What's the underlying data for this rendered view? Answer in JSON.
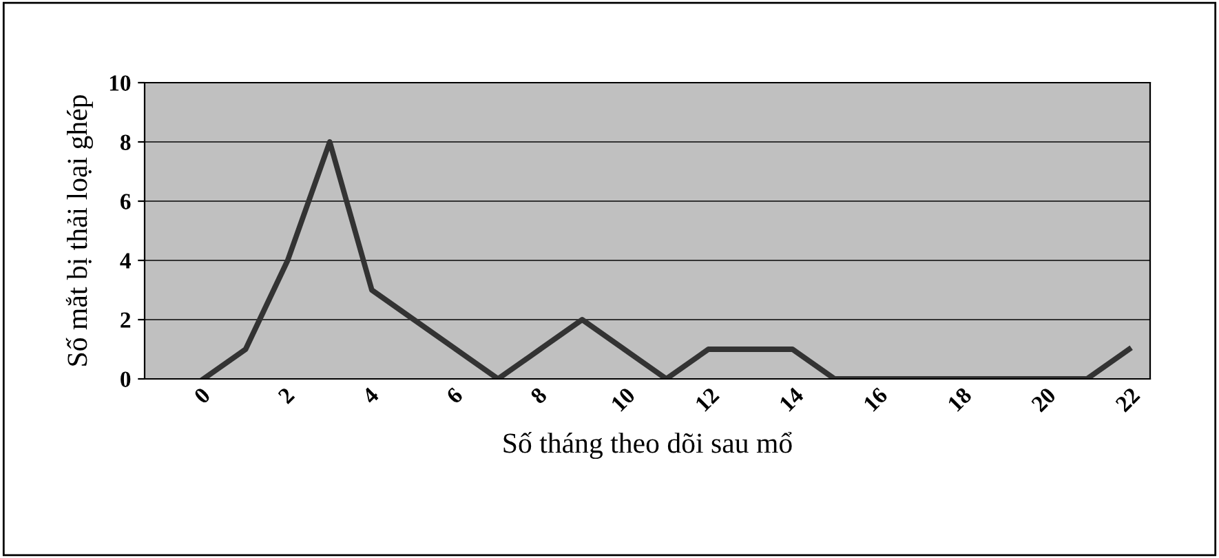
{
  "chart_data": {
    "type": "line",
    "xlabel": "Số tháng theo dõi sau mổ",
    "ylabel": "Số mắt bị thải loại ghép",
    "categories": [
      "0",
      null,
      "2",
      null,
      "4",
      null,
      "6",
      null,
      "8",
      null,
      "10",
      null,
      "12",
      null,
      "14",
      null,
      "16",
      null,
      "18",
      null,
      "20",
      null,
      "22"
    ],
    "series": [
      {
        "color": "#333333",
        "values": [
          0,
          1,
          4,
          8,
          3,
          2,
          1,
          0,
          1,
          2,
          1,
          0,
          1,
          1,
          1,
          0,
          0,
          0,
          0,
          0,
          0,
          0,
          1
        ]
      }
    ],
    "ylim": [
      0,
      10
    ],
    "yticks": [
      0,
      2,
      4,
      6,
      8,
      10
    ],
    "grid": "y",
    "legend": false,
    "marker": "none",
    "line_style": "solid"
  }
}
